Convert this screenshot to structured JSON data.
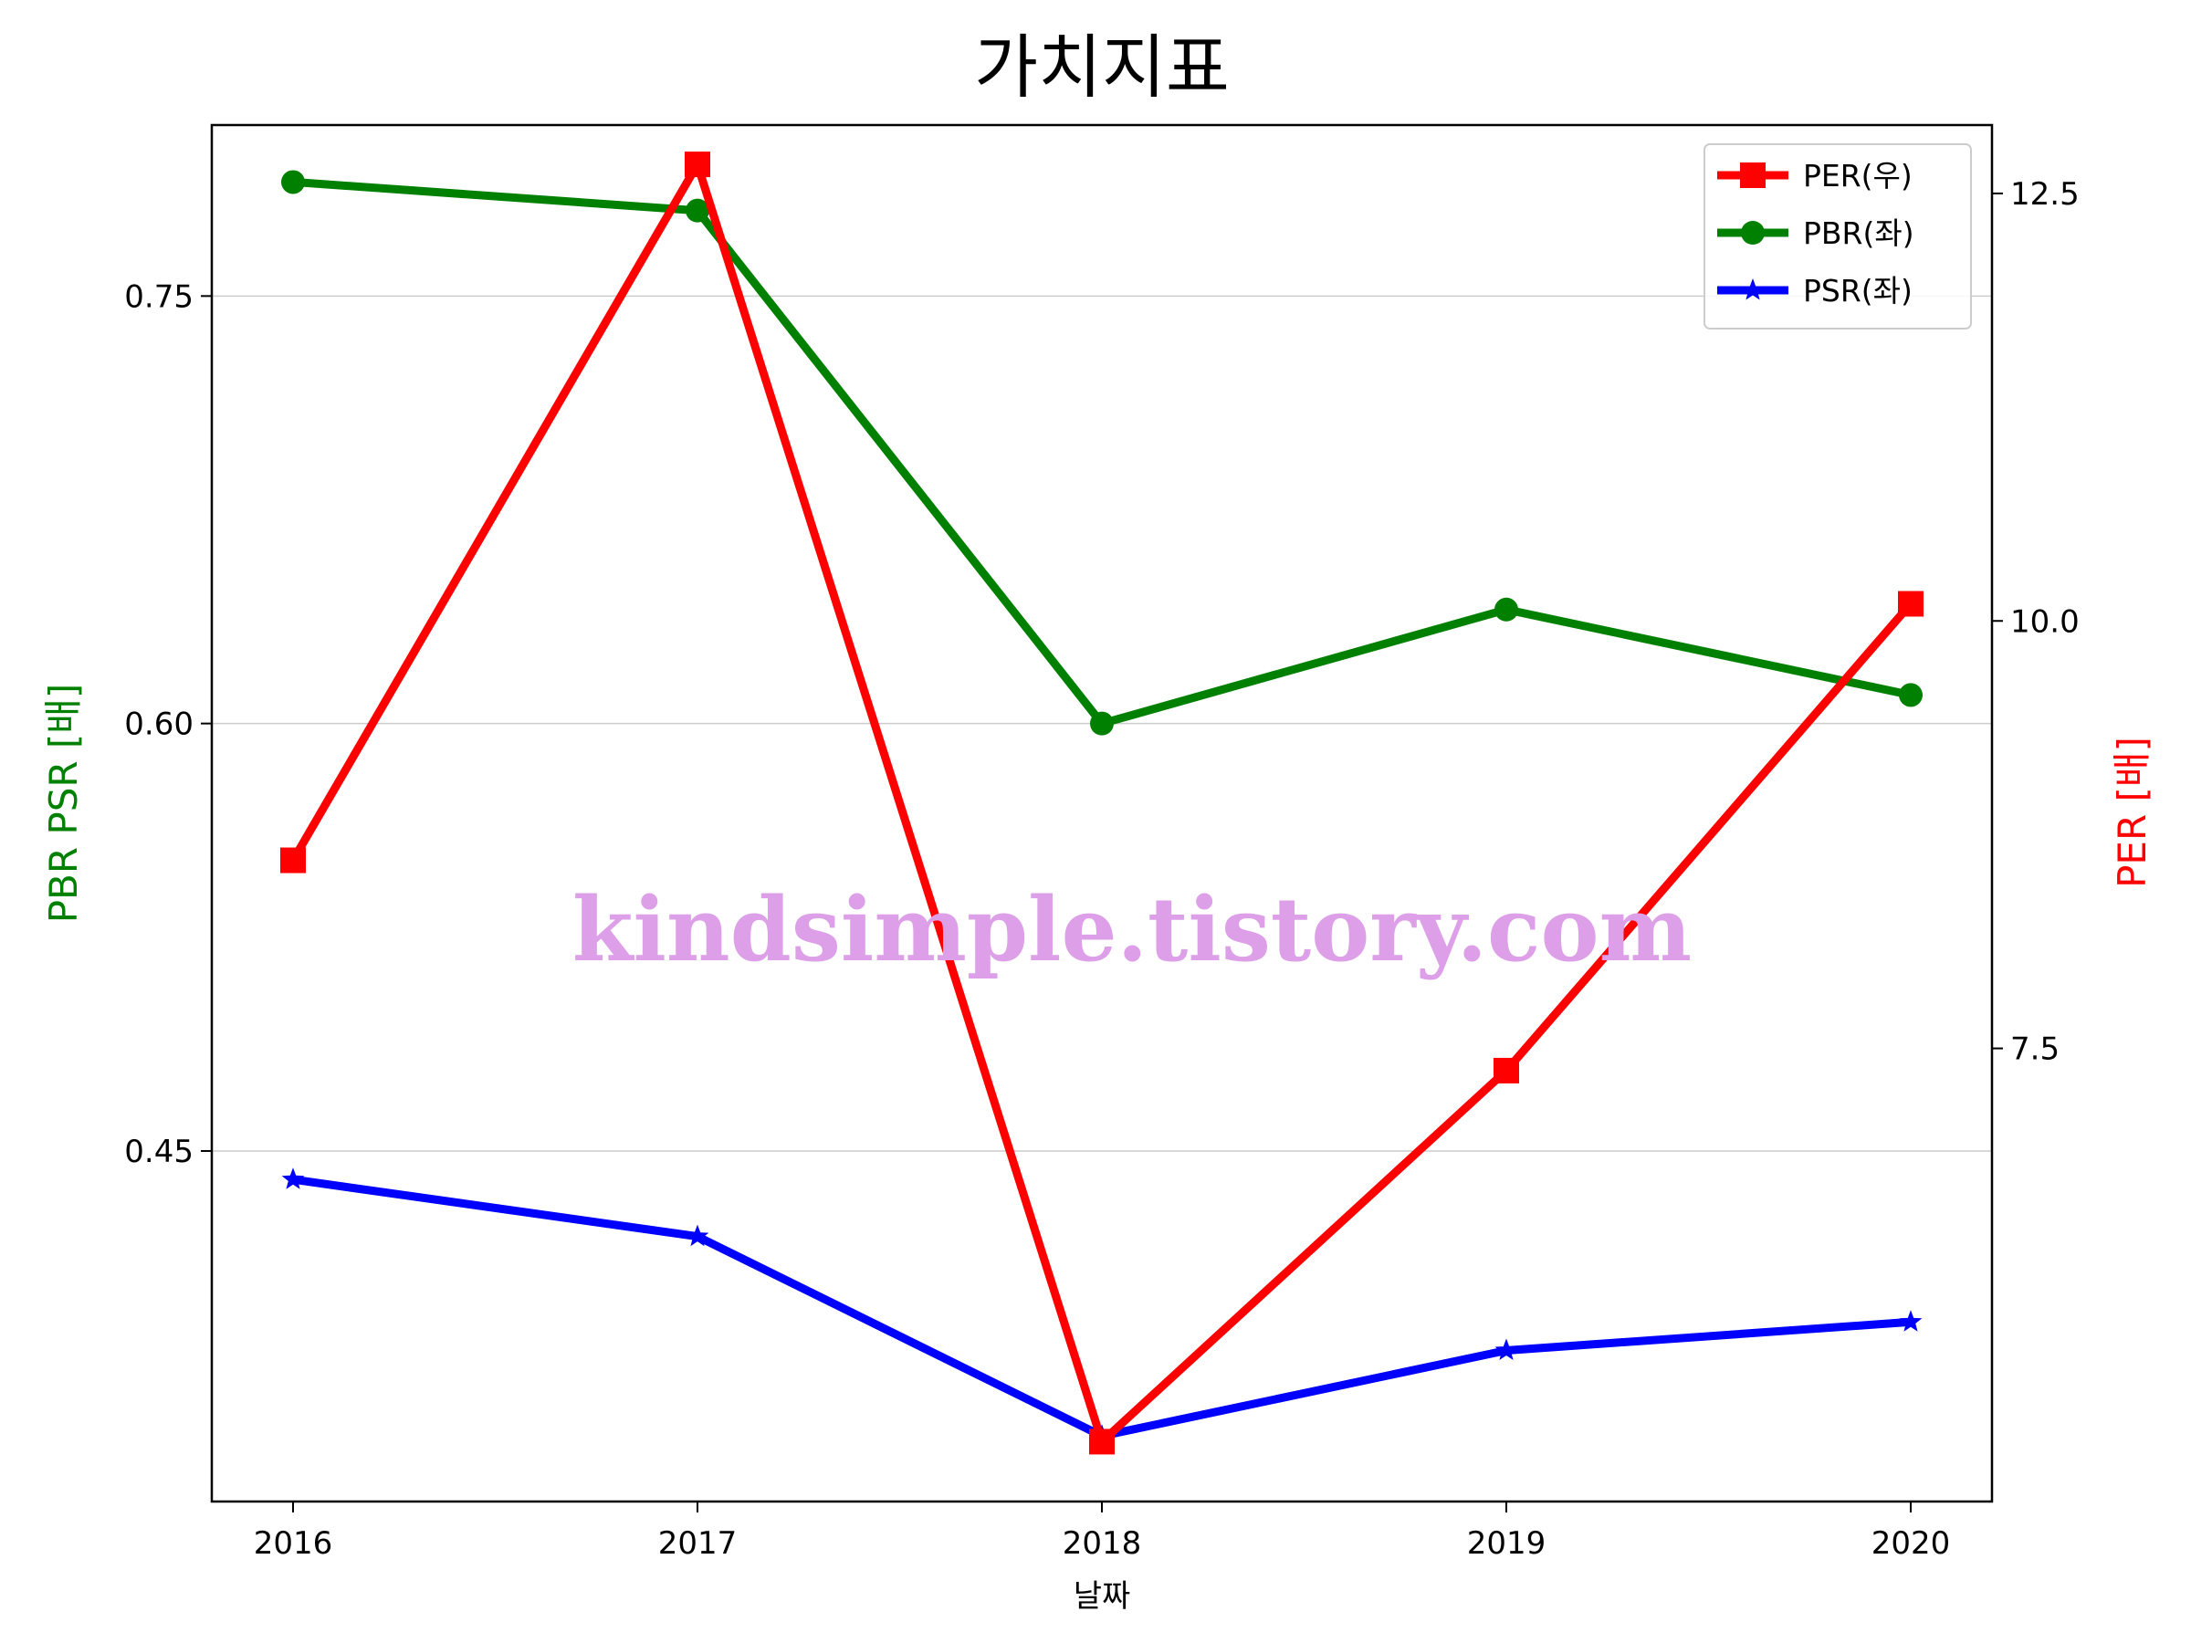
{
  "chart_data": {
    "type": "line",
    "title": "가치지표",
    "xlabel": "날짜",
    "ylabel_left": "PBR PSR [배]",
    "ylabel_right": "PER [배]",
    "categories": [
      "2016",
      "2017",
      "2018",
      "2019",
      "2020"
    ],
    "ylim_left": [
      0.327,
      0.81
    ],
    "yticks_left": [
      "0.45",
      "0.60",
      "0.75"
    ],
    "ylim_right": [
      4.85,
      12.9
    ],
    "yticks_right": [
      "7.5",
      "10.0",
      "12.5"
    ],
    "grid": "horizontal (left axis)",
    "legend_position": "top-right",
    "series": [
      {
        "name": "PER(우)",
        "axis": "right",
        "color": "#ff0000",
        "marker": "square",
        "values": [
          8.6,
          12.67,
          5.2,
          7.37,
          10.1
        ]
      },
      {
        "name": "PBR(좌)",
        "axis": "left",
        "color": "#008000",
        "marker": "circle",
        "values": [
          0.79,
          0.78,
          0.6,
          0.64,
          0.61
        ]
      },
      {
        "name": "PSR(좌)",
        "axis": "left",
        "color": "#0000ff",
        "marker": "star",
        "values": [
          0.44,
          0.42,
          0.35,
          0.38,
          0.39
        ]
      }
    ],
    "watermark": "kindsimple.tistory.com"
  }
}
